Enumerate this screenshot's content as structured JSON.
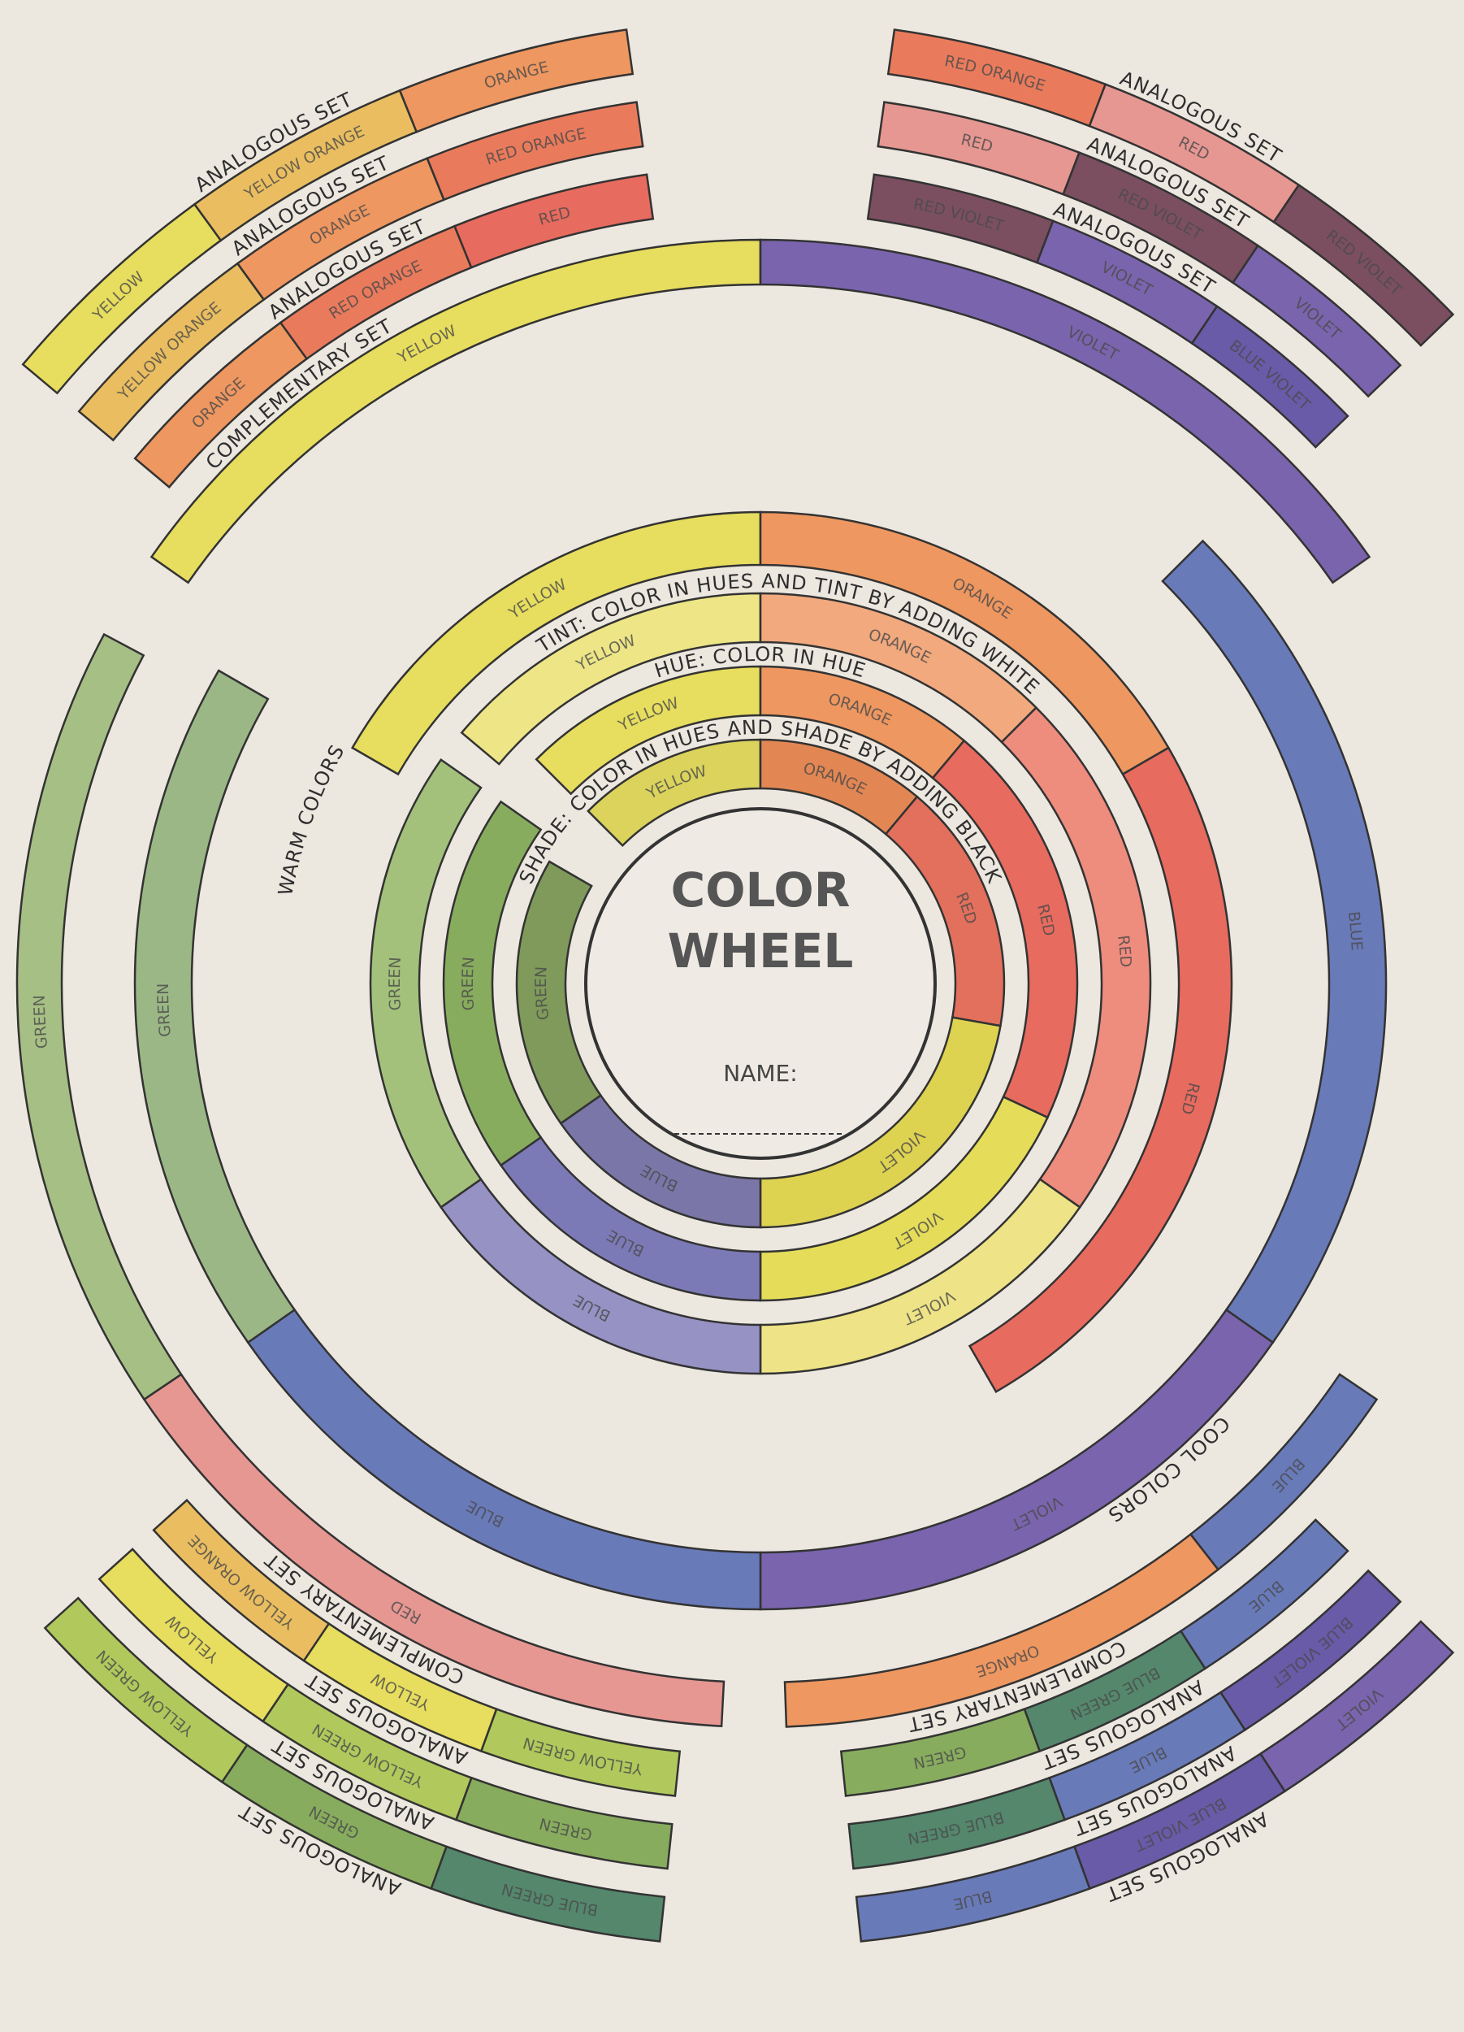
{
  "title_line1": "COLOR",
  "title_line2": "WHEEL",
  "name_label": "NAME:",
  "rings": [
    {
      "label": "SHADE: COLOR IN HUES AND SHADE BY ADDING BLACK",
      "segments": [
        "YELLOW",
        "ORANGE",
        "RED",
        "VIOLET",
        "BLUE",
        "GREEN"
      ]
    },
    {
      "label": "HUE: COLOR IN HUE",
      "segments": [
        "YELLOW",
        "ORANGE",
        "RED",
        "VIOLET",
        "BLUE",
        "GREEN"
      ]
    },
    {
      "label": "TINT: COLOR IN HUES AND TINT BY ADDING WHITE",
      "segments": [
        "YELLOW",
        "ORANGE",
        "RED",
        "VIOLET",
        "BLUE",
        "GREEN"
      ]
    },
    {
      "label": "WARM COLORS",
      "segments": [
        "YELLOW",
        "ORANGE",
        "RED"
      ]
    },
    {
      "label": "COOL COLORS",
      "segments": [
        "BLUE",
        "VIOLET",
        "BLUE",
        "GREEN"
      ]
    },
    {
      "label": "COMPLEMENTARY SET",
      "segments": [
        "YELLOW",
        "VIOLET"
      ]
    },
    {
      "label": "COMPLEMENTARY SET",
      "segments": [
        "RED",
        "GREEN"
      ]
    },
    {
      "label": "COMPLEMENTARY SET",
      "segments": [
        "BLUE",
        "ORANGE"
      ]
    },
    {
      "label": "ANALOGOUS SET",
      "segments": [
        "YELLOW",
        "YELLOW ORANGE",
        "ORANGE"
      ]
    },
    {
      "label": "ANALOGOUS SET",
      "segments": [
        "YELLOW ORANGE",
        "ORANGE",
        "RED ORANGE"
      ]
    },
    {
      "label": "ANALOGOUS SET",
      "segments": [
        "ORANGE",
        "RED ORANGE",
        "RED"
      ]
    },
    {
      "label": "ANALOGOUS SET",
      "segments": [
        "RED ORANGE",
        "RED",
        "RED VIOLET"
      ]
    },
    {
      "label": "ANALOGOUS SET",
      "segments": [
        "RED",
        "RED VIOLET",
        "VIOLET"
      ]
    },
    {
      "label": "ANALOGOUS SET",
      "segments": [
        "RED VIOLET",
        "VIOLET",
        "BLUE VIOLET"
      ]
    },
    {
      "label": "ANALOGOUS SET",
      "segments": [
        "BLUE",
        "BLUE GREEN",
        "GREEN"
      ]
    },
    {
      "label": "ANALOGOUS SET",
      "segments": [
        "BLUE VIOLET",
        "BLUE",
        "BLUE GREEN"
      ]
    },
    {
      "label": "ANALOGOUS SET",
      "segments": [
        "VIOLET",
        "BLUE VIOLET",
        "BLUE"
      ]
    },
    {
      "label": "ANALOGOUS SET",
      "segments": [
        "YELLOW GREEN",
        "YELLOW",
        "YELLOW ORANGE"
      ]
    },
    {
      "label": "ANALOGOUS SET",
      "segments": [
        "GREEN",
        "YELLOW GREEN",
        "YELLOW"
      ]
    },
    {
      "label": "ANALOGOUS SET",
      "segments": [
        "BLUE GREEN",
        "GREEN",
        "YELLOW GREEN"
      ]
    }
  ]
}
